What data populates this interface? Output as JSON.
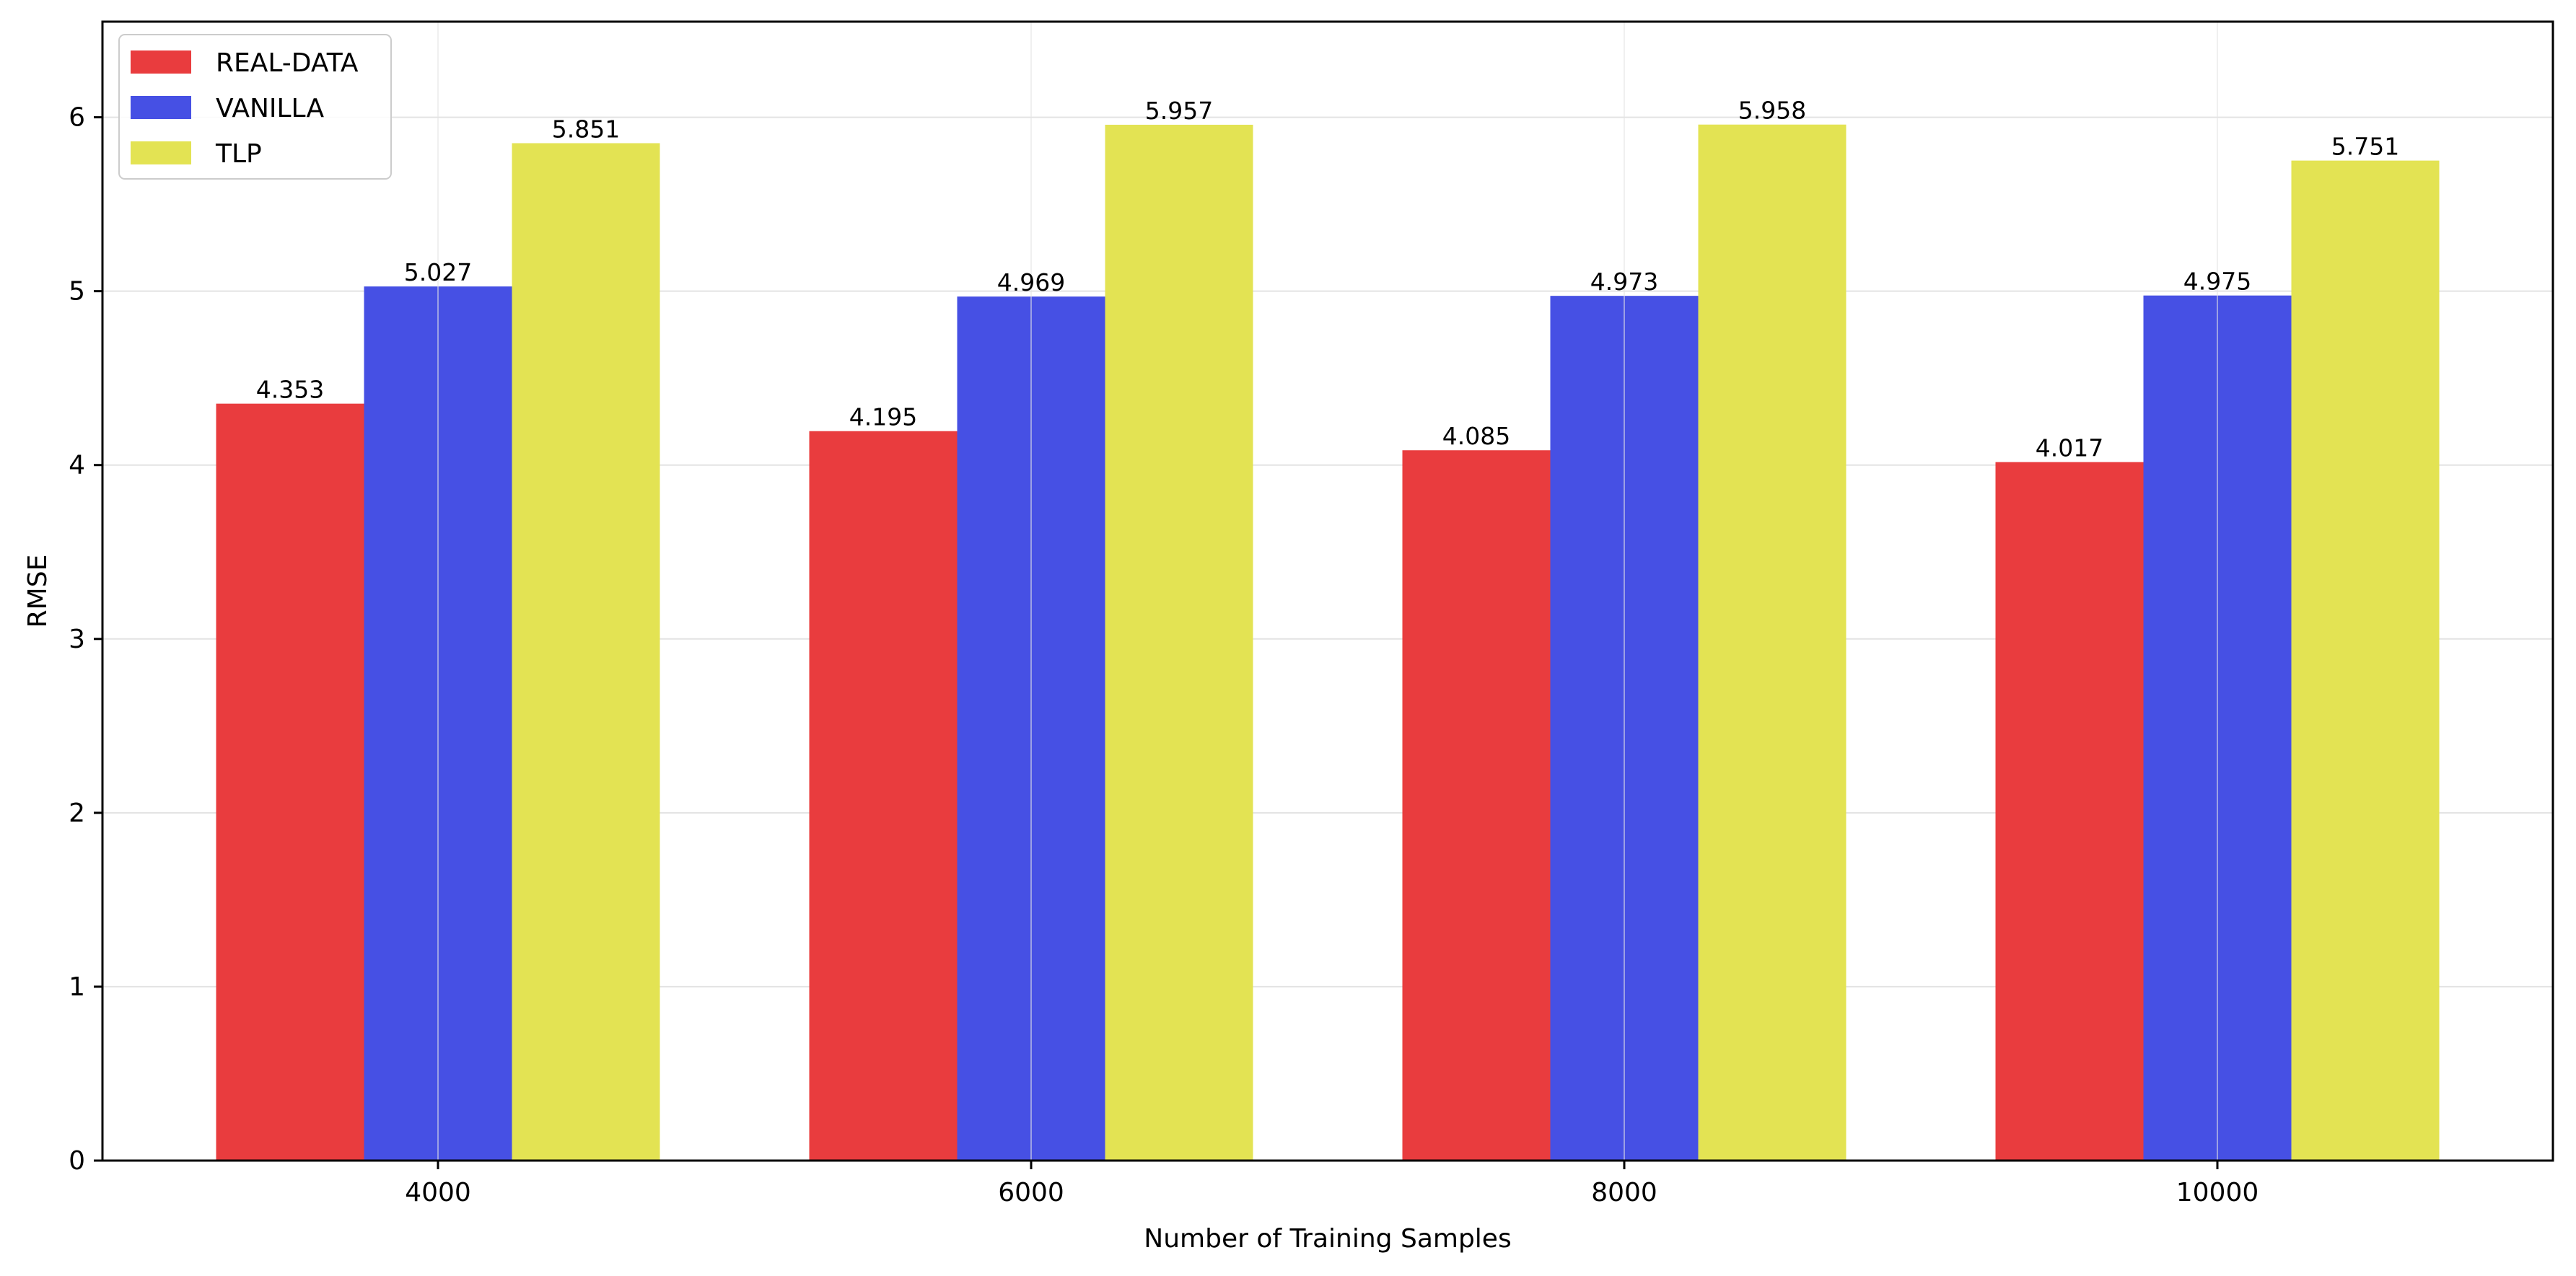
{
  "chart_data": {
    "type": "bar",
    "categories": [
      "4000",
      "6000",
      "8000",
      "10000"
    ],
    "series": [
      {
        "name": "REAL-DATA",
        "values": [
          4.353,
          4.195,
          4.085,
          4.017
        ],
        "color": "#e93c3e"
      },
      {
        "name": "VANILLA",
        "values": [
          5.027,
          4.969,
          4.973,
          4.975
        ],
        "color": "#4650e4"
      },
      {
        "name": "TLP",
        "values": [
          5.851,
          5.957,
          5.958,
          5.751
        ],
        "color": "#e3e353"
      }
    ],
    "data_labels": [
      [
        "4.353",
        "5.027",
        "5.851"
      ],
      [
        "4.195",
        "4.969",
        "5.957"
      ],
      [
        "4.085",
        "4.973",
        "5.958"
      ],
      [
        "4.017",
        "4.975",
        "5.751"
      ]
    ],
    "xlabel": "Number of Training Samples",
    "ylabel": "RMSE",
    "ylim": [
      0,
      6.55
    ],
    "yticks": [
      "0",
      "1",
      "2",
      "3",
      "4",
      "5",
      "6"
    ],
    "grid": true,
    "legend_position": "top-left",
    "colors": {
      "grid": "#e3e3e3",
      "axis": "#000000",
      "bar_edge": "#a6a6c9"
    }
  }
}
